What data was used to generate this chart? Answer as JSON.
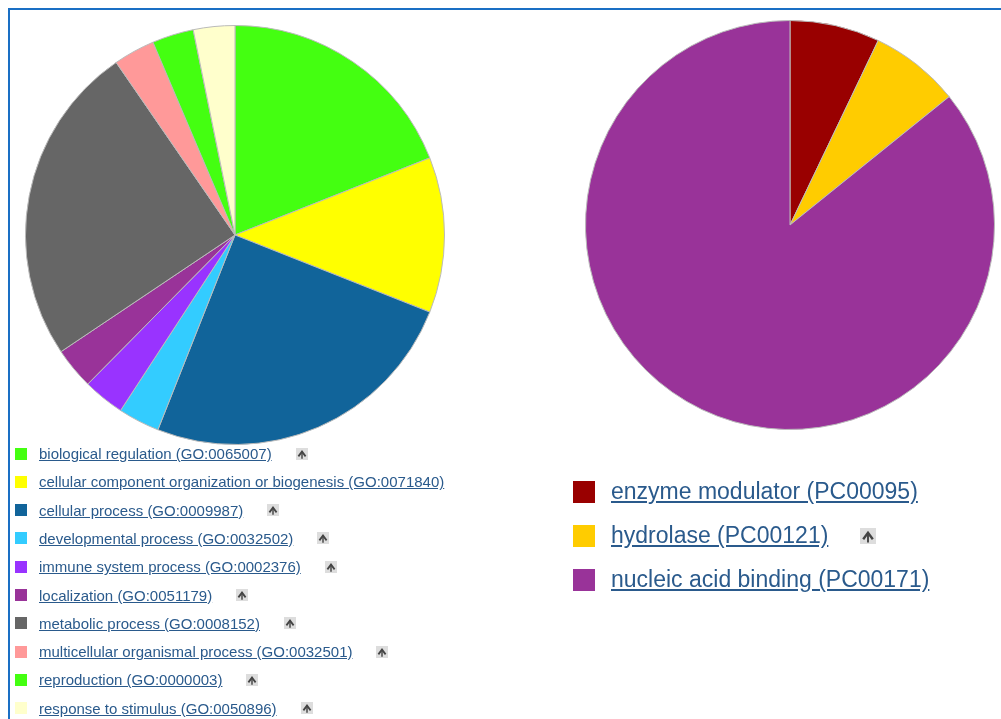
{
  "chart_data": [
    {
      "type": "pie",
      "legend": "bottom",
      "categories": [
        "biological regulation (GO:0065007)",
        "cellular component organization or biogenesis (GO:0071840)",
        "cellular process (GO:0009987)",
        "developmental process (GO:0032502)",
        "immune system process (GO:0002376)",
        "localization (GO:0051179)",
        "metabolic process (GO:0008152)",
        "multicellular organismal process (GO:0032501)",
        "reproduction (GO:0000003)",
        "response to stimulus (GO:0050896)"
      ],
      "values": [
        19,
        12,
        25,
        3.2,
        3.2,
        3.2,
        24.8,
        3.2,
        3.2,
        3.2
      ],
      "colors": [
        "#44ff11",
        "#ffff00",
        "#11649a",
        "#33ccff",
        "#9933ff",
        "#993399",
        "#666666",
        "#ff9999",
        "#44ff11",
        "#ffffcc"
      ]
    },
    {
      "type": "pie",
      "legend": "bottom",
      "categories": [
        "enzyme modulator (PC00095)",
        "hydrolase (PC00121)",
        "nucleic acid binding (PC00171)"
      ],
      "values": [
        7.1,
        7.1,
        85.8
      ],
      "colors": [
        "#990000",
        "#ffcc00",
        "#993399"
      ]
    }
  ]
}
